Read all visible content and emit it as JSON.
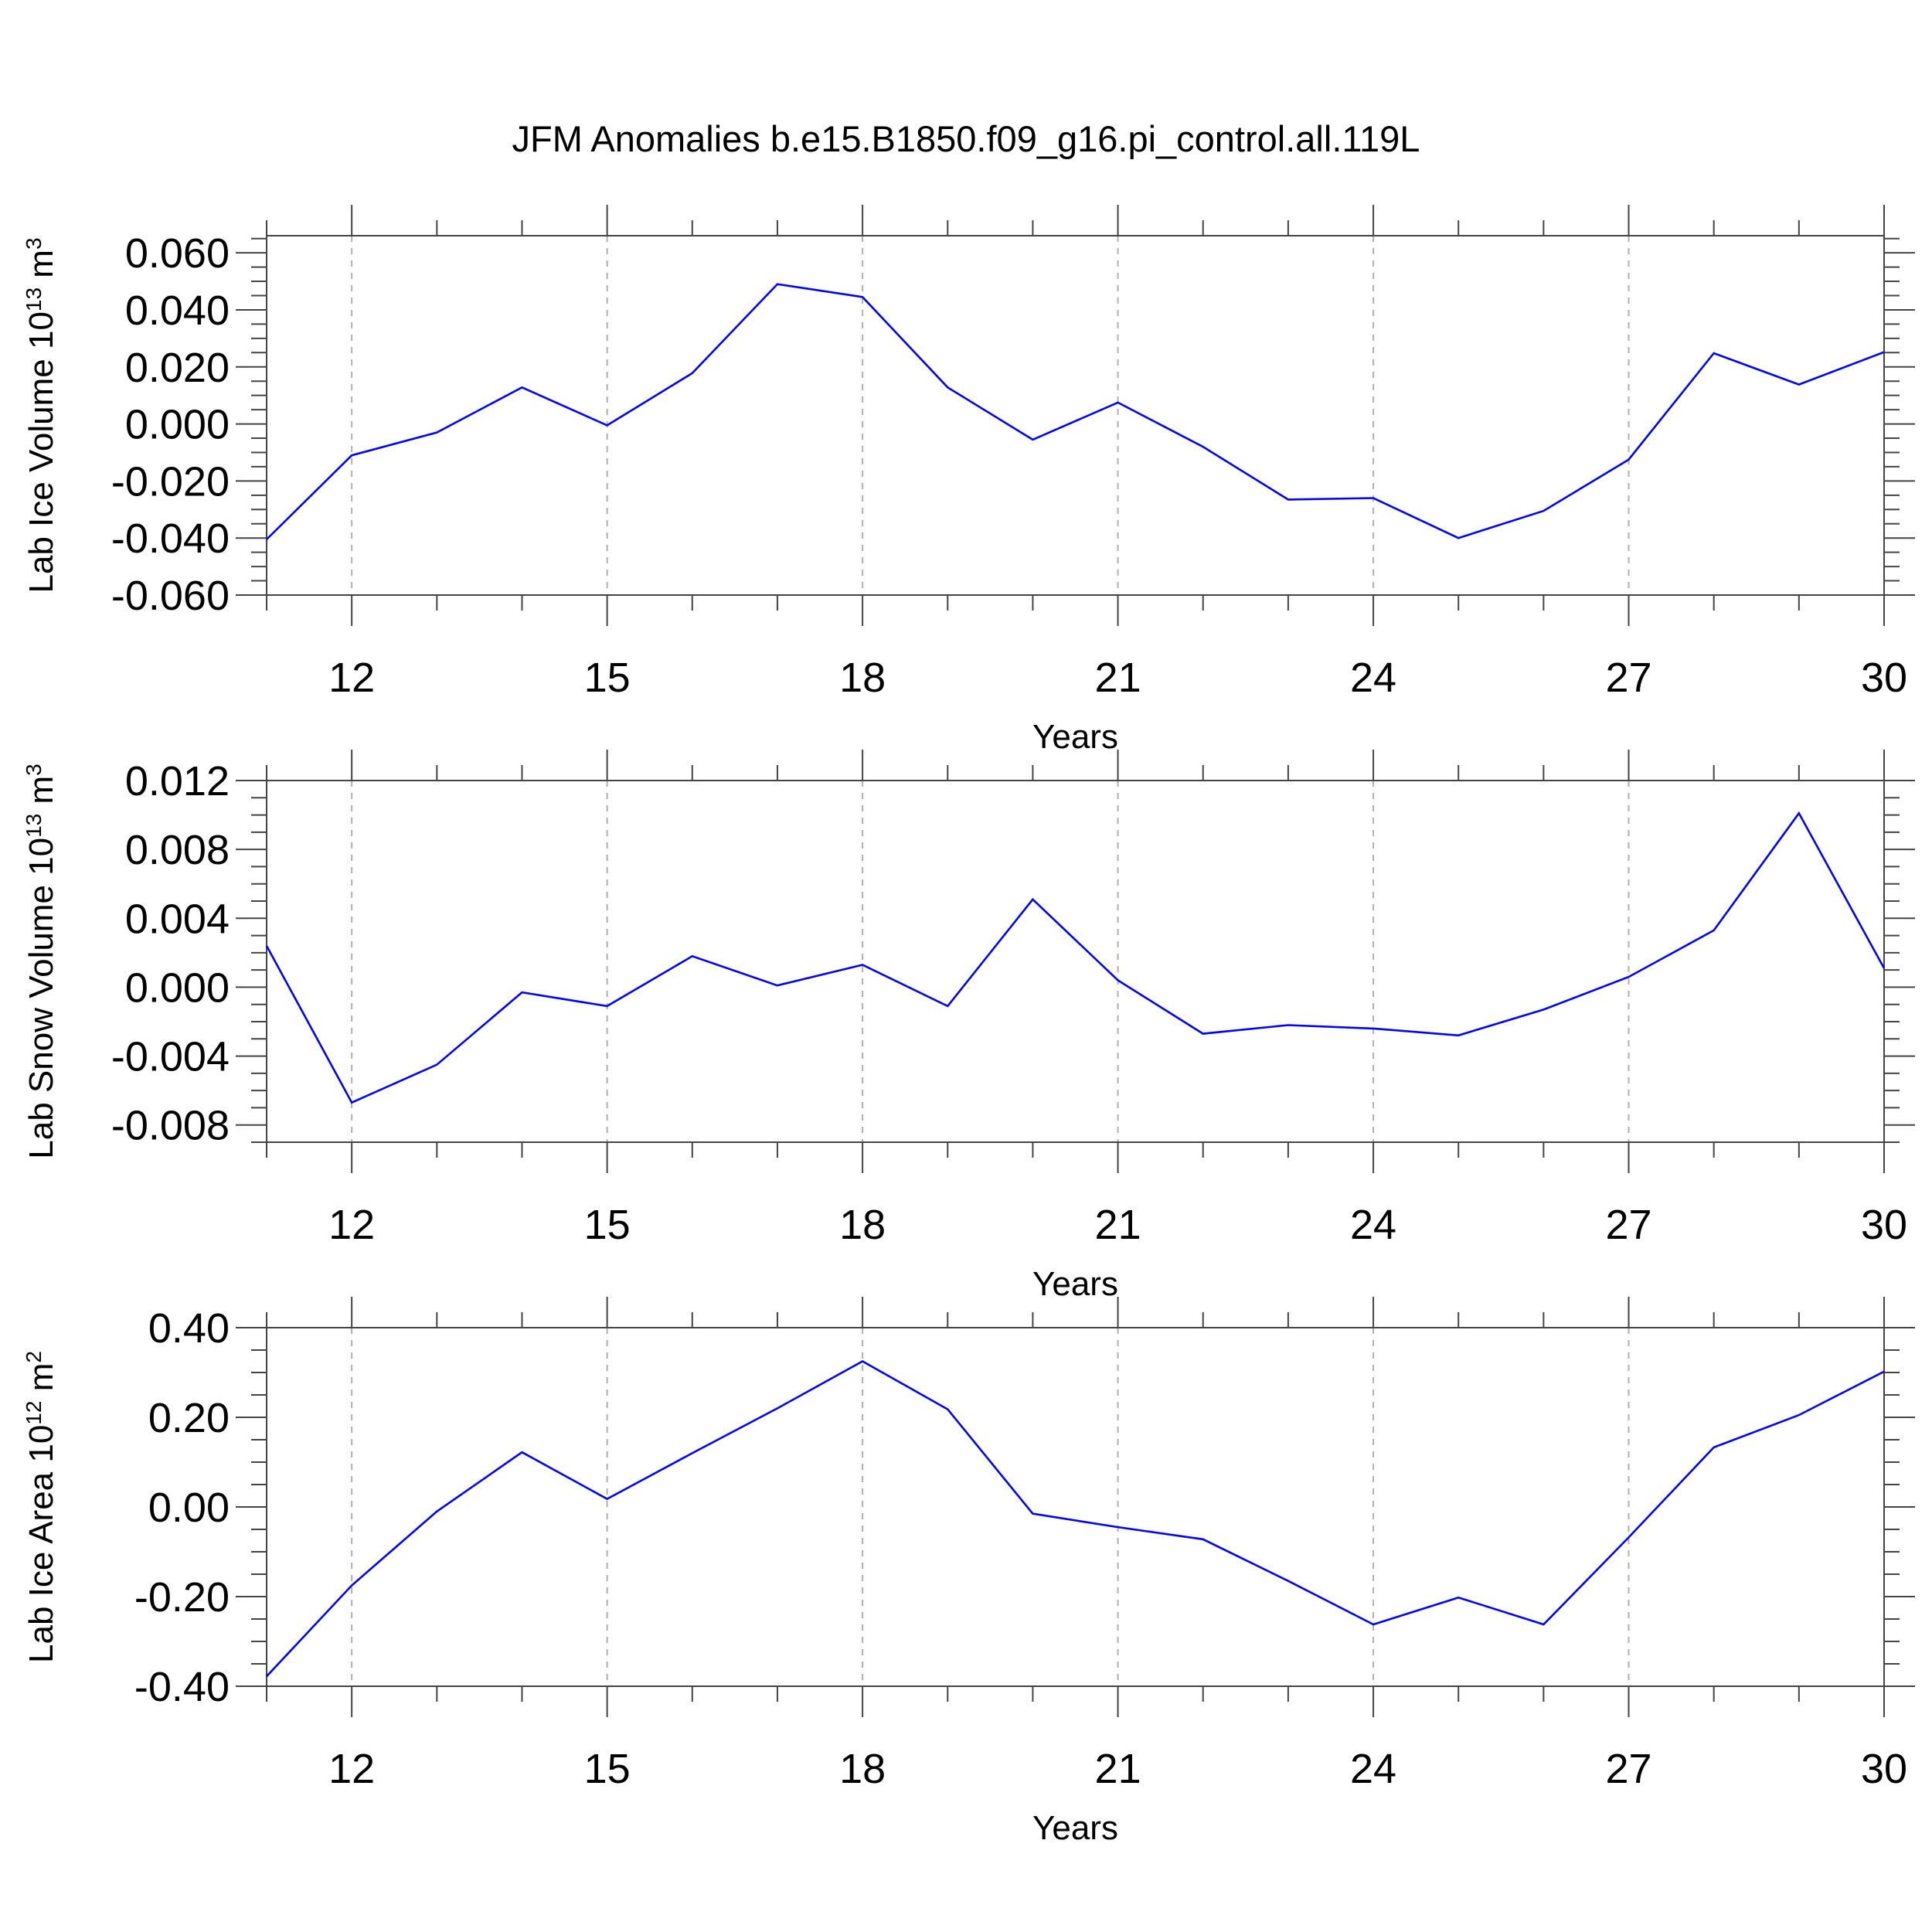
{
  "title": "JFM Anomalies b.e15.B1850.f09_g16.pi_control.all.119L",
  "chart_data": [
    {
      "type": "line",
      "title": "",
      "ylabel": "Lab Ice Volume 10",
      "ylabel_sup": "13",
      "ylabel_unit": " m",
      "ylabel_unit_sup": "3",
      "xlabel": "Years",
      "xlim": [
        11,
        30
      ],
      "ylim": [
        -0.06,
        0.066
      ],
      "xticks": [
        12,
        15,
        18,
        21,
        24,
        27,
        30
      ],
      "xtick_labels": [
        "12",
        "15",
        "18",
        "21",
        "24",
        "27",
        "30"
      ],
      "yticks": [
        -0.06,
        -0.04,
        -0.02,
        0.0,
        0.02,
        0.04,
        0.06
      ],
      "ytick_labels": [
        "-0.060",
        "-0.040",
        "-0.020",
        "0.000",
        "0.020",
        "0.040",
        "0.060"
      ],
      "grid": "vertical dashed at major x ticks",
      "line_color": "#0000ff",
      "x": [
        11,
        12,
        13,
        14,
        15,
        16,
        17,
        18,
        19,
        20,
        21,
        22,
        23,
        24,
        25,
        26,
        27,
        28,
        29,
        30
      ],
      "values": [
        -0.0405,
        -0.011,
        -0.003,
        0.0128,
        -0.0005,
        0.0178,
        0.049,
        0.0445,
        0.0128,
        -0.0055,
        0.0075,
        -0.008,
        -0.0265,
        -0.026,
        -0.04,
        -0.0305,
        -0.0125,
        0.0248,
        0.0138,
        0.0252
      ]
    },
    {
      "type": "line",
      "title": "",
      "ylabel": "Lab Snow Volume 10",
      "ylabel_sup": "13",
      "ylabel_unit": " m",
      "ylabel_unit_sup": "3",
      "xlabel": "Years",
      "xlim": [
        11,
        30
      ],
      "ylim": [
        -0.009,
        0.012
      ],
      "xticks": [
        12,
        15,
        18,
        21,
        24,
        27,
        30
      ],
      "xtick_labels": [
        "12",
        "15",
        "18",
        "21",
        "24",
        "27",
        "30"
      ],
      "yticks": [
        -0.008,
        -0.004,
        0.0,
        0.004,
        0.008,
        0.012
      ],
      "ytick_labels": [
        "-0.008",
        "-0.004",
        "0.000",
        "0.004",
        "0.008",
        "0.012"
      ],
      "grid": "vertical dashed at major x ticks",
      "line_color": "#0000ff",
      "x": [
        11,
        12,
        13,
        14,
        15,
        16,
        17,
        18,
        19,
        20,
        21,
        22,
        23,
        24,
        25,
        26,
        27,
        28,
        29,
        30
      ],
      "values": [
        0.0024,
        -0.0067,
        -0.0045,
        -0.0003,
        -0.0011,
        0.0018,
        0.0001,
        0.0013,
        -0.0011,
        0.0051,
        0.0004,
        -0.0027,
        -0.0022,
        -0.0024,
        -0.0028,
        -0.0013,
        0.0006,
        0.0033,
        0.0101,
        0.0011
      ]
    },
    {
      "type": "line",
      "title": "",
      "ylabel": "Lab Ice Area 10",
      "ylabel_sup": "12",
      "ylabel_unit": " m",
      "ylabel_unit_sup": "2",
      "xlabel": "Years",
      "xlim": [
        11,
        30
      ],
      "ylim": [
        -0.4,
        0.4
      ],
      "xticks": [
        12,
        15,
        18,
        21,
        24,
        27,
        30
      ],
      "xtick_labels": [
        "12",
        "15",
        "18",
        "21",
        "24",
        "27",
        "30"
      ],
      "yticks": [
        -0.4,
        -0.2,
        0.0,
        0.2,
        0.4
      ],
      "ytick_labels": [
        "-0.40",
        "-0.20",
        "0.00",
        "0.20",
        "0.40"
      ],
      "grid": "vertical dashed at major x ticks",
      "line_color": "#0000ff",
      "x": [
        11,
        12,
        13,
        14,
        15,
        16,
        17,
        18,
        19,
        20,
        21,
        22,
        23,
        24,
        25,
        26,
        27,
        28,
        29,
        30
      ],
      "values": [
        -0.378,
        -0.175,
        -0.01,
        0.122,
        0.018,
        0.12,
        0.22,
        0.325,
        0.218,
        -0.015,
        -0.045,
        -0.072,
        -0.165,
        -0.262,
        -0.202,
        -0.262,
        -0.068,
        0.133,
        0.205,
        0.302
      ]
    }
  ]
}
